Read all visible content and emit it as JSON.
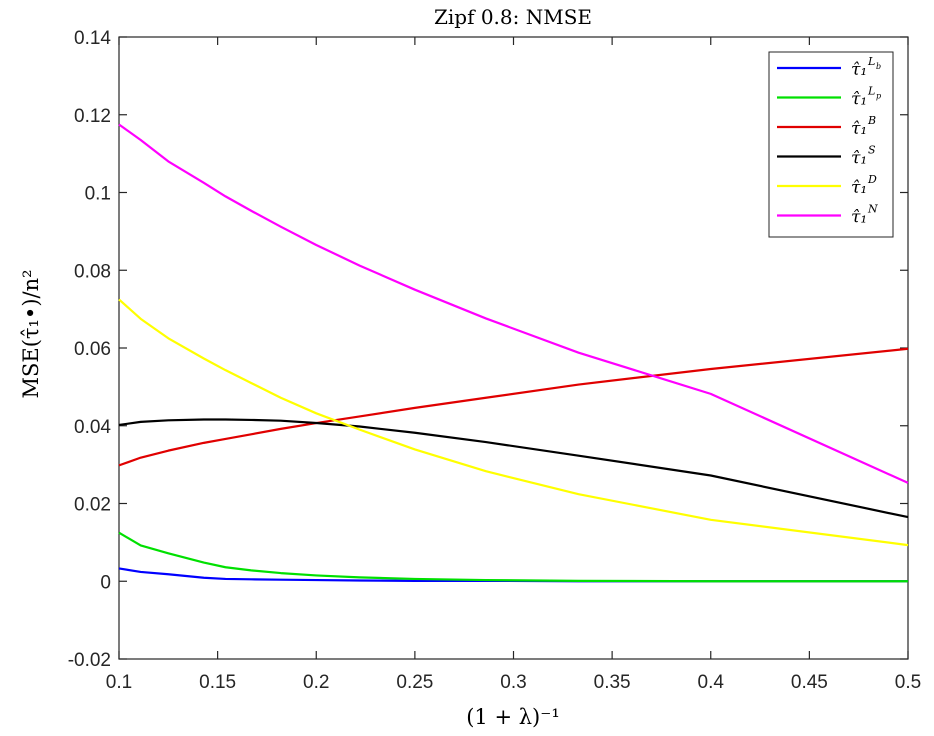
{
  "chart_data": {
    "type": "line",
    "title": "Zipf 0.8: NMSE",
    "xlabel": "(1 + λ)⁻¹",
    "ylabel": "MSE(τ̂₁•)/n²",
    "xlim": [
      0.1,
      0.5
    ],
    "ylim": [
      -0.02,
      0.14
    ],
    "xticks": [
      "0.1",
      "0.15",
      "0.2",
      "0.25",
      "0.3",
      "0.35",
      "0.4",
      "0.45",
      "0.5"
    ],
    "yticks": [
      "-0.02",
      "0",
      "0.02",
      "0.04",
      "0.06",
      "0.08",
      "0.1",
      "0.12",
      "0.14"
    ],
    "grid": false,
    "legend_position": "top-right",
    "series": [
      {
        "name": "τ̂₁",
        "sup": "L",
        "subsup": "b",
        "color": "#0000ff",
        "x": [
          0.1,
          0.111,
          0.125,
          0.143,
          0.154,
          0.167,
          0.182,
          0.2,
          0.222,
          0.25,
          0.286,
          0.333,
          0.4,
          0.5
        ],
        "y": [
          0.0033,
          0.0024,
          0.0018,
          0.0009,
          0.0006,
          0.0005,
          0.0004,
          0.0003,
          0.0002,
          0.0001,
          0.0001,
          0.0,
          0.0,
          0.0
        ]
      },
      {
        "name": "τ̂₁",
        "sup": "L",
        "subsup": "p",
        "color": "#00e000",
        "x": [
          0.1,
          0.111,
          0.125,
          0.143,
          0.154,
          0.167,
          0.182,
          0.2,
          0.222,
          0.25,
          0.286,
          0.333,
          0.4,
          0.5
        ],
        "y": [
          0.0125,
          0.0092,
          0.0072,
          0.0048,
          0.0036,
          0.0028,
          0.0021,
          0.0015,
          0.001,
          0.0006,
          0.0003,
          0.0001,
          0.0,
          0.0
        ]
      },
      {
        "name": "τ̂₁",
        "sup": "B",
        "subsup": "",
        "color": "#e00000",
        "x": [
          0.1,
          0.111,
          0.125,
          0.143,
          0.154,
          0.167,
          0.182,
          0.2,
          0.222,
          0.25,
          0.286,
          0.333,
          0.4,
          0.5
        ],
        "y": [
          0.0298,
          0.0318,
          0.0336,
          0.0356,
          0.0366,
          0.0378,
          0.0392,
          0.0407,
          0.0424,
          0.0446,
          0.0472,
          0.0506,
          0.0546,
          0.0598
        ]
      },
      {
        "name": "τ̂₁",
        "sup": "S",
        "subsup": "",
        "color": "#000000",
        "x": [
          0.1,
          0.111,
          0.125,
          0.143,
          0.154,
          0.167,
          0.182,
          0.2,
          0.222,
          0.25,
          0.286,
          0.333,
          0.4,
          0.5
        ],
        "y": [
          0.0402,
          0.041,
          0.0414,
          0.0416,
          0.0416,
          0.0415,
          0.0413,
          0.0407,
          0.0398,
          0.0382,
          0.0358,
          0.0323,
          0.0272,
          0.0165
        ]
      },
      {
        "name": "τ̂₁",
        "sup": "D",
        "subsup": "",
        "color": "#ffff00",
        "x": [
          0.1,
          0.111,
          0.125,
          0.143,
          0.154,
          0.167,
          0.182,
          0.2,
          0.222,
          0.25,
          0.286,
          0.333,
          0.4,
          0.5
        ],
        "y": [
          0.0725,
          0.0675,
          0.0625,
          0.0573,
          0.0543,
          0.051,
          0.0472,
          0.0432,
          0.039,
          0.0339,
          0.0283,
          0.0224,
          0.0158,
          0.0093
        ]
      },
      {
        "name": "τ̂₁",
        "sup": "N",
        "subsup": "",
        "color": "#ff00ff",
        "x": [
          0.1,
          0.111,
          0.125,
          0.143,
          0.154,
          0.167,
          0.182,
          0.2,
          0.222,
          0.25,
          0.286,
          0.333,
          0.4,
          0.5
        ],
        "y": [
          0.1175,
          0.1135,
          0.108,
          0.1025,
          0.099,
          0.0953,
          0.0912,
          0.0865,
          0.0812,
          0.075,
          0.0676,
          0.0588,
          0.0482,
          0.0253
        ]
      }
    ]
  }
}
